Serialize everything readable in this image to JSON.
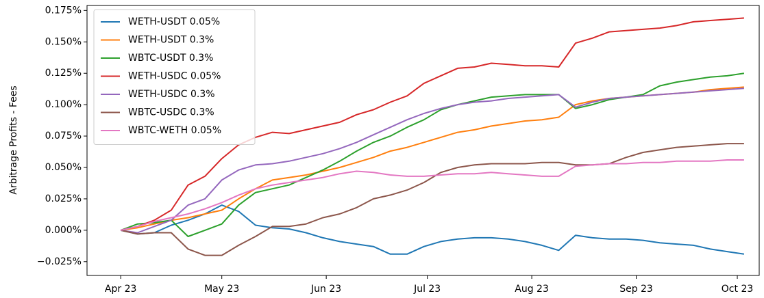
{
  "chart_data": {
    "type": "line",
    "ylabel": "Arbitrage Profits - Fees",
    "x": [
      0,
      5,
      10,
      15,
      20,
      25,
      30,
      35,
      40,
      45,
      50,
      55,
      60,
      65,
      70,
      75,
      80,
      85,
      90,
      95,
      100,
      105,
      110,
      115,
      120,
      125,
      130,
      135,
      140,
      145,
      150,
      155,
      160,
      165,
      170,
      175,
      180,
      185
    ],
    "xlim": [
      -10,
      189.5
    ],
    "xticks": [
      {
        "value": 0,
        "label": "Apr 23"
      },
      {
        "value": 30,
        "label": "May 23"
      },
      {
        "value": 61,
        "label": "Jun 23"
      },
      {
        "value": 91,
        "label": "Jul 23"
      },
      {
        "value": 122,
        "label": "Aug 23"
      },
      {
        "value": 153,
        "label": "Sep 23"
      },
      {
        "value": 183,
        "label": "Oct 23"
      }
    ],
    "ylim": [
      -0.036,
      0.179
    ],
    "yticks": [
      {
        "value": -0.025,
        "label": "−0.025%"
      },
      {
        "value": 0,
        "label": "0.000%"
      },
      {
        "value": 0.025,
        "label": "0.025%"
      },
      {
        "value": 0.05,
        "label": "0.050%"
      },
      {
        "value": 0.075,
        "label": "0.075%"
      },
      {
        "value": 0.1,
        "label": "0.100%"
      },
      {
        "value": 0.125,
        "label": "0.125%"
      },
      {
        "value": 0.15,
        "label": "0.150%"
      },
      {
        "value": 0.175,
        "label": "0.175%"
      }
    ],
    "legend": "upper left",
    "series": [
      {
        "name": "WETH-USDT 0.05%",
        "color": "#1f77b4",
        "values": [
          0,
          -0.003,
          -0.002,
          0.004,
          0.008,
          0.013,
          0.02,
          0.015,
          0.004,
          0.002,
          0.001,
          -0.002,
          -0.006,
          -0.009,
          -0.011,
          -0.013,
          -0.019,
          -0.019,
          -0.013,
          -0.009,
          -0.007,
          -0.006,
          -0.006,
          -0.007,
          -0.009,
          -0.012,
          -0.016,
          -0.004,
          -0.006,
          -0.007,
          -0.007,
          -0.008,
          -0.01,
          -0.011,
          -0.012,
          -0.015,
          -0.017,
          -0.019
        ]
      },
      {
        "name": "WETH-USDT 0.3%",
        "color": "#ff7f0e",
        "values": [
          0,
          0.002,
          0.005,
          0.008,
          0.01,
          0.013,
          0.016,
          0.025,
          0.033,
          0.04,
          0.042,
          0.044,
          0.047,
          0.05,
          0.054,
          0.058,
          0.063,
          0.066,
          0.07,
          0.074,
          0.078,
          0.08,
          0.083,
          0.085,
          0.087,
          0.088,
          0.09,
          0.1,
          0.103,
          0.105,
          0.106,
          0.107,
          0.108,
          0.109,
          0.11,
          0.112,
          0.113,
          0.114
        ]
      },
      {
        "name": "WBTC-USDT 0.3%",
        "color": "#2ca02c",
        "values": [
          0,
          0.005,
          0.006,
          0.008,
          -0.005,
          0,
          0.005,
          0.02,
          0.03,
          0.033,
          0.036,
          0.042,
          0.048,
          0.055,
          0.063,
          0.07,
          0.075,
          0.082,
          0.088,
          0.096,
          0.1,
          0.103,
          0.106,
          0.107,
          0.108,
          0.108,
          0.108,
          0.097,
          0.1,
          0.104,
          0.106,
          0.108,
          0.115,
          0.118,
          0.12,
          0.122,
          0.123,
          0.125
        ]
      },
      {
        "name": "WETH-USDC 0.05%",
        "color": "#d62728",
        "values": [
          0,
          0.003,
          0.008,
          0.016,
          0.036,
          0.043,
          0.057,
          0.068,
          0.074,
          0.078,
          0.077,
          0.08,
          0.083,
          0.086,
          0.092,
          0.096,
          0.102,
          0.107,
          0.117,
          0.123,
          0.129,
          0.13,
          0.133,
          0.132,
          0.131,
          0.131,
          0.13,
          0.149,
          0.153,
          0.158,
          0.159,
          0.16,
          0.161,
          0.163,
          0.166,
          0.167,
          0.168,
          0.169
        ]
      },
      {
        "name": "WETH-USDC 0.3%",
        "color": "#9467bd",
        "values": [
          0,
          -0.002,
          0.003,
          0.008,
          0.02,
          0.025,
          0.04,
          0.048,
          0.052,
          0.053,
          0.055,
          0.058,
          0.061,
          0.065,
          0.07,
          0.076,
          0.082,
          0.088,
          0.093,
          0.097,
          0.1,
          0.102,
          0.103,
          0.105,
          0.106,
          0.107,
          0.108,
          0.098,
          0.102,
          0.105,
          0.106,
          0.107,
          0.108,
          0.109,
          0.11,
          0.111,
          0.112,
          0.113
        ]
      },
      {
        "name": "WBTC-USDC 0.3%",
        "color": "#8c564b",
        "values": [
          0,
          -0.003,
          -0.002,
          -0.002,
          -0.015,
          -0.02,
          -0.02,
          -0.012,
          -0.005,
          0.003,
          0.003,
          0.005,
          0.01,
          0.013,
          0.018,
          0.025,
          0.028,
          0.032,
          0.038,
          0.046,
          0.05,
          0.052,
          0.053,
          0.053,
          0.053,
          0.054,
          0.054,
          0.052,
          0.052,
          0.053,
          0.058,
          0.062,
          0.064,
          0.066,
          0.067,
          0.068,
          0.069,
          0.069
        ]
      },
      {
        "name": "WBTC-WETH 0.05%",
        "color": "#e377c2",
        "values": [
          0,
          0.003,
          0.007,
          0.01,
          0.013,
          0.017,
          0.022,
          0.028,
          0.033,
          0.036,
          0.038,
          0.04,
          0.042,
          0.045,
          0.047,
          0.046,
          0.044,
          0.043,
          0.043,
          0.044,
          0.045,
          0.045,
          0.046,
          0.045,
          0.044,
          0.043,
          0.043,
          0.051,
          0.052,
          0.053,
          0.053,
          0.054,
          0.054,
          0.055,
          0.055,
          0.055,
          0.056,
          0.056
        ]
      }
    ]
  }
}
